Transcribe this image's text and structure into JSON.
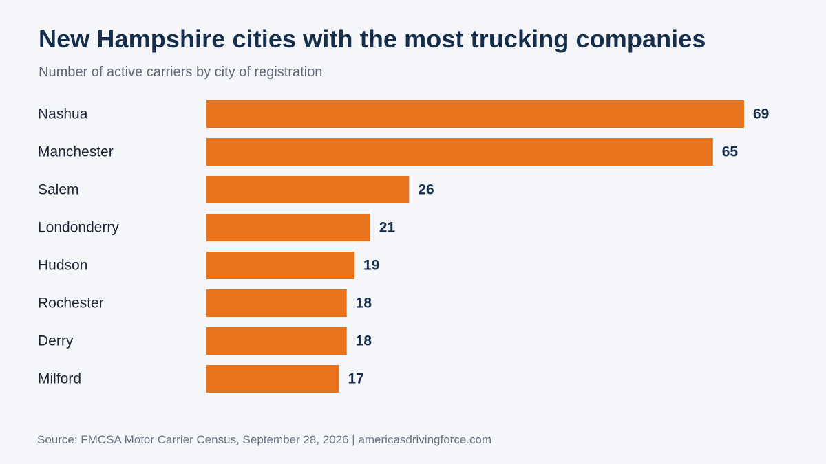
{
  "chart_data": {
    "type": "bar",
    "orientation": "horizontal",
    "title": "New Hampshire cities with the most trucking companies",
    "subtitle": "Number of active carriers by city of registration",
    "categories": [
      "Nashua",
      "Manchester",
      "Salem",
      "Londonderry",
      "Hudson",
      "Rochester",
      "Derry",
      "Milford"
    ],
    "values": [
      69,
      65,
      26,
      21,
      19,
      18,
      18,
      17
    ],
    "xlim": [
      0,
      69
    ],
    "grid": false,
    "legend": "none",
    "bar_color": "#e8731c",
    "source": "Source: FMCSA Motor Carrier Census, September 28, 2026 | americasdrivingforce.com"
  }
}
